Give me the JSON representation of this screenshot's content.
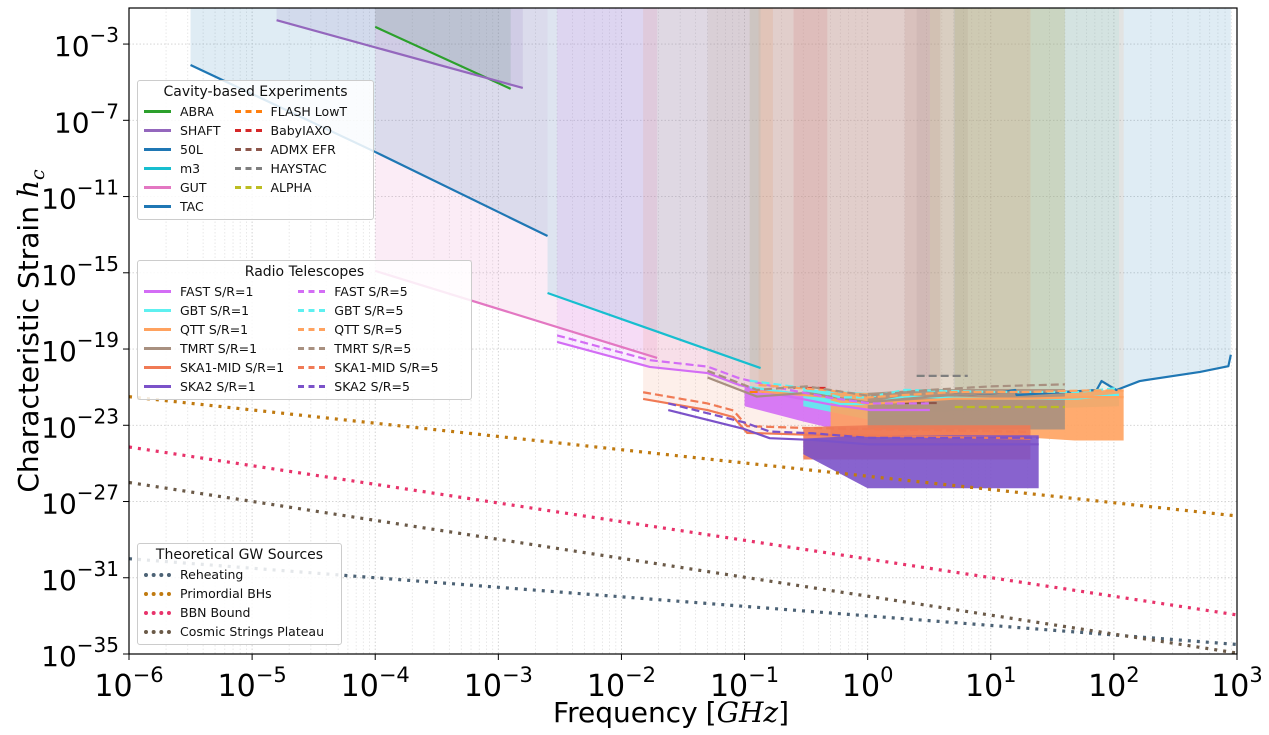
{
  "chart_data": {
    "type": "line",
    "xlabel": "Frequency",
    "xlabel_unit": "GHz",
    "ylabel": "Characteristic Strain",
    "ylabel_symbol": "h",
    "ylabel_subscript": "c",
    "xscale": "log",
    "yscale": "log",
    "xlim": [
      1e-06,
      1000.0
    ],
    "ylim": [
      1e-35,
      0.078
    ],
    "xtick_exponents": [
      -6,
      -5,
      -4,
      -3,
      -2,
      -1,
      0,
      1,
      2,
      3
    ],
    "ytick_exponents": [
      -3,
      -7,
      -11,
      -15,
      -19,
      -23,
      -27,
      -31,
      -35
    ],
    "grid": true,
    "legends": [
      {
        "title": "Cavity-based Experiments",
        "placement": "upper-left",
        "columns": [
          [
            "ABRA",
            "SHAFT",
            "50L",
            "m3",
            "GUT",
            "TAC"
          ],
          [
            "FLASH LowT",
            "BabyIAXO",
            "ADMX EFR",
            "HAYSTAC",
            "ALPHA"
          ]
        ]
      },
      {
        "title": "Radio Telescopes",
        "placement": "center-left",
        "columns": [
          [
            "FAST S/R=1",
            "GBT S/R=1",
            "QTT S/R=1",
            "TMRT S/R=1",
            "SKA1-MID S/R=1",
            "SKA2 S/R=1"
          ],
          [
            "FAST S/R=5",
            "GBT S/R=5",
            "QTT S/R=5",
            "TMRT S/R=5",
            "SKA1-MID S/R=5",
            "SKA2 S/R=5"
          ]
        ]
      },
      {
        "title": "Theoretical GW Sources",
        "placement": "lower-left",
        "columns": [
          [
            "Reheating",
            "Primordial BHs",
            "BBN Bound",
            "Cosmic Strings Plateau"
          ]
        ]
      }
    ],
    "series": [
      {
        "name": "ABRA",
        "group": "cavity",
        "color": "#2ca02c",
        "style": "solid",
        "fill": true,
        "segments": [
          {
            "f": [
              0.0001,
              0.00126
            ],
            "h": [
              0.00794,
              4.47e-06
            ]
          }
        ]
      },
      {
        "name": "SHAFT",
        "group": "cavity",
        "color": "#9467bd",
        "style": "solid",
        "fill": true,
        "segments": [
          {
            "f": [
              1.58e-05,
              0.00158
            ],
            "h": [
              0.0178,
              5.01e-06
            ]
          }
        ]
      },
      {
        "name": "50L",
        "group": "cavity",
        "color": "#1f77b4",
        "style": "solid",
        "fill": true,
        "segments": [
          {
            "f": [
              3.16e-06,
              0.0001
            ],
            "h": [
              7.94e-05,
              2.19e-09
            ]
          },
          {
            "f": [
              5.01,
              11.2,
              15.8,
              16.2,
              72.4,
              79.4,
              105,
              162,
              501,
              851,
              891
            ],
            "h": [
              3.89e-22,
              4.9e-22,
              7.08e-22,
              3.89e-22,
              7.08e-22,
              2.09e-21,
              7.08e-22,
              2.09e-21,
              6.31e-21,
              1.26e-20,
              5.01e-20
            ]
          }
        ]
      },
      {
        "name": "m3",
        "group": "cavity",
        "color": "#17becf",
        "style": "solid",
        "fill": true,
        "segments": [
          {
            "f": [
              0.00251,
              0.135
            ],
            "h": [
              8.71e-17,
              1e-20
            ]
          }
        ]
      },
      {
        "name": "GUT",
        "group": "cavity",
        "color": "#e377c2",
        "style": "solid",
        "fill": true,
        "segments": [
          {
            "f": [
              0.0001,
              0.0195
            ],
            "h": [
              1.26e-15,
              3.39e-20
            ]
          }
        ]
      },
      {
        "name": "TAC",
        "group": "cavity",
        "color": "#1f77b4",
        "style": "solid",
        "fill": true,
        "segments": [
          {
            "f": [
              0.0001,
              0.00251
            ],
            "h": [
              2.19e-09,
              8.51e-14
            ]
          }
        ]
      },
      {
        "name": "FLASH LowT",
        "group": "cavity",
        "color": "#ff7f0e",
        "style": "dashed",
        "fill": true,
        "segments": [
          {
            "f": [
              0.11,
              0.17
            ],
            "h": [
              5.62e-22,
              5.62e-22
            ]
          }
        ]
      },
      {
        "name": "BabyIAXO",
        "group": "cavity",
        "color": "#d62728",
        "style": "dashed",
        "fill": true,
        "segments": [
          {
            "f": [
              0.25,
              0.47
            ],
            "h": [
              9.12e-22,
              9.12e-22
            ]
          }
        ]
      },
      {
        "name": "ADMX EFR",
        "group": "cavity",
        "color": "#8c564b",
        "style": "dashed",
        "fill": true,
        "segments": [
          {
            "f": [
              2.0,
              3.9
            ],
            "h": [
              1.48e-22,
              1.48e-22
            ]
          }
        ]
      },
      {
        "name": "HAYSTAC",
        "group": "cavity",
        "color": "#7f7f7f",
        "style": "dashed",
        "fill": true,
        "segments": [
          {
            "f": [
              2.5,
              6.5
            ],
            "h": [
              3.89e-21,
              3.89e-21
            ]
          }
        ]
      },
      {
        "name": "ALPHA",
        "group": "cavity",
        "color": "#bcbd22",
        "style": "dashed",
        "fill": true,
        "segments": [
          {
            "f": [
              5.1,
              40
            ],
            "h": [
              9.12e-23,
              9.12e-23
            ]
          }
        ]
      },
      {
        "name": "FAST S/R=1",
        "group": "radio",
        "color": "#d36df5",
        "style": "solid",
        "fill": true,
        "segments": [
          {
            "f": [
              0.003,
              0.017,
              0.05,
              0.091,
              0.195,
              0.49,
              1.05,
              3.2
            ],
            "h": [
              2.34e-19,
              1.15e-20,
              5.5e-21,
              1.29e-21,
              3.98e-22,
              1.26e-22,
              6.31e-23,
              6.31e-23
            ]
          }
        ],
        "noise": {
          "f": [
            0.1,
            0.3,
            1,
            3.2
          ],
          "lo": [
            1e-22,
            1.58e-23,
            2.51e-24,
            2.51e-24
          ],
          "hi": [
            1e-21,
            5.01e-22,
            1.58e-22,
            1.58e-22
          ]
        }
      },
      {
        "name": "GBT S/R=1",
        "group": "radio",
        "color": "#5ef0f0",
        "style": "solid",
        "fill": true,
        "segments": [
          {
            "f": [
              0.11,
              0.3,
              0.6,
              1.0,
              2.0,
              10,
              50,
              110
            ],
            "h": [
              1e-21,
              4e-22,
              1.3e-22,
              1.3e-22,
              3.2e-22,
              2.5e-22,
              2.5e-22,
              4e-22
            ]
          }
        ],
        "noise": {
          "f": [
            0.3,
            1,
            3,
            110
          ],
          "lo": [
            1e-22,
            2e-23,
            5e-23,
            1e-22
          ],
          "hi": [
            8e-22,
            5e-22,
            6e-22,
            6e-22
          ]
        }
      },
      {
        "name": "QTT S/R=1",
        "group": "radio",
        "color": "#ffa25f",
        "style": "solid",
        "fill": true,
        "segments": [
          {
            "f": [
              0.13,
              0.5,
              1,
              5,
              20,
              60,
              120
            ],
            "h": [
              6e-22,
              3e-22,
              1.3e-22,
              2.5e-22,
              2.5e-22,
              3e-22,
              3e-22
            ]
          }
        ],
        "noise": {
          "f": [
            0.5,
            10,
            48,
            120
          ],
          "lo": [
            3e-24,
            3e-24,
            1.6e-24,
            1.6e-24
          ],
          "hi": [
            5e-22,
            5e-22,
            7e-22,
            7e-22
          ]
        }
      },
      {
        "name": "TMRT S/R=1",
        "group": "radio",
        "color": "#a89080",
        "style": "solid",
        "fill": true,
        "segments": [
          {
            "f": [
              0.05,
              0.126,
              0.32,
              1,
              3.2,
              10,
              40
            ],
            "h": [
              3.2e-21,
              3.2e-22,
              5e-22,
              1.6e-22,
              3.2e-22,
              5e-22,
              6.3e-22
            ]
          }
        ],
        "noise": {
          "f": [
            1,
            3.2,
            10,
            40
          ],
          "lo": [
            6e-24,
            6e-24,
            6e-24,
            6e-24
          ],
          "hi": [
            5e-22,
            8e-22,
            8e-22,
            8e-22
          ]
        }
      },
      {
        "name": "SKA1-MID S/R=1",
        "group": "radio",
        "color": "#f07a55",
        "style": "solid",
        "fill": true,
        "segments": [
          {
            "f": [
              0.015,
              0.05,
              0.081,
              0.105,
              0.32,
              3.2,
              21
            ],
            "h": [
              2.4e-22,
              6.3e-23,
              2.7e-23,
              4e-24,
              3.2e-24,
              2.5e-24,
              2e-24
            ]
          }
        ],
        "noise": {
          "f": [
            0.3,
            1,
            5,
            21
          ],
          "lo": [
            1.6e-25,
            1.6e-25,
            1.6e-25,
            1.6e-25
          ],
          "hi": [
            8e-24,
            1e-23,
            1e-23,
            1e-23
          ]
        }
      },
      {
        "name": "SKA2 S/R=1",
        "group": "radio",
        "color": "#7b52c9",
        "style": "solid",
        "fill": false,
        "segments": [
          {
            "f": [
              0.024,
              0.1,
              0.16,
              0.36,
              1,
              24.5
            ],
            "h": [
              6.3e-23,
              6.3e-24,
              2.1e-24,
              1.7e-24,
              1e-24,
              1e-24
            ]
          }
        ],
        "noise": {
          "f": [
            0.3,
            1,
            5,
            24.5
          ],
          "lo": [
            3e-25,
            5e-27,
            5e-27,
            5e-27
          ],
          "hi": [
            2e-24,
            3e-24,
            3e-24,
            3e-24
          ]
        }
      },
      {
        "name": "FAST S/R=5",
        "group": "radio",
        "color": "#d36df5",
        "style": "dashed",
        "fill": false,
        "segments": [
          {
            "f": [
              0.003,
              0.017,
              0.05,
              0.091,
              0.195,
              0.49,
              1.05,
              3.2
            ],
            "h": [
              5.2e-19,
              2.6e-20,
              1.2e-20,
              2.9e-21,
              8.9e-22,
              2.8e-22,
              1.4e-22,
              1.4e-22
            ]
          }
        ]
      },
      {
        "name": "GBT S/R=5",
        "group": "radio",
        "color": "#5ef0f0",
        "style": "dashed",
        "fill": false,
        "segments": [
          {
            "f": [
              0.11,
              0.3,
              0.6,
              1.0,
              2.0,
              10,
              50,
              110
            ],
            "h": [
              2.2e-21,
              9e-22,
              2.9e-22,
              2.9e-22,
              7.2e-22,
              5.6e-22,
              5.6e-22,
              9e-22
            ]
          }
        ]
      },
      {
        "name": "QTT S/R=5",
        "group": "radio",
        "color": "#ffa25f",
        "style": "dashed",
        "fill": false,
        "segments": [
          {
            "f": [
              0.13,
              0.5,
              1,
              5,
              20,
              60,
              120
            ],
            "h": [
              1.3e-21,
              6.7e-22,
              2.9e-22,
              5.6e-22,
              5.6e-22,
              6.7e-22,
              6.7e-22
            ]
          }
        ]
      },
      {
        "name": "TMRT S/R=5",
        "group": "radio",
        "color": "#a89080",
        "style": "dashed",
        "fill": false,
        "segments": [
          {
            "f": [
              0.05,
              0.126,
              0.32,
              1,
              3.2,
              10,
              40
            ],
            "h": [
              7.2e-21,
              7.2e-22,
              1.1e-21,
              3.6e-22,
              7.2e-22,
              1.1e-21,
              1.4e-21
            ]
          }
        ]
      },
      {
        "name": "SKA1-MID S/R=5",
        "group": "radio",
        "color": "#f07a55",
        "style": "dashed",
        "fill": false,
        "segments": [
          {
            "f": [
              0.015,
              0.05,
              0.081,
              0.105,
              0.32,
              3.2,
              21
            ],
            "h": [
              5.4e-22,
              1.4e-22,
              6e-23,
              9e-24,
              7.2e-24,
              5.6e-24,
              4.5e-24
            ]
          }
        ]
      },
      {
        "name": "SKA2 S/R=5",
        "group": "radio",
        "color": "#7b52c9",
        "style": "dashed",
        "fill": false,
        "segments": [
          {
            "f": [
              0.024,
              0.1,
              0.16,
              0.36,
              1,
              24.5
            ],
            "h": [
              1.4e-22,
              1.4e-23,
              4.7e-24,
              3.8e-24,
              2.2e-24,
              2.2e-24
            ]
          }
        ]
      },
      {
        "name": "Reheating",
        "group": "theory",
        "color": "#4c6275",
        "style": "dotted",
        "fill": false,
        "segments": [
          {
            "f": [
              1e-06,
              1000.0
            ],
            "h": [
              1e-30,
              3.16e-35
            ]
          }
        ]
      },
      {
        "name": "Primordial BHs",
        "group": "theory",
        "color": "#c07a10",
        "style": "dotted",
        "fill": false,
        "segments": [
          {
            "f": [
              1e-06,
              1000.0
            ],
            "h": [
              3.16e-22,
              1.74e-28
            ]
          }
        ]
      },
      {
        "name": "BBN Bound",
        "group": "theory",
        "color": "#e8336b",
        "style": "dotted",
        "fill": false,
        "segments": [
          {
            "f": [
              1e-06,
              1000.0
            ],
            "h": [
              7.24e-25,
              1.12e-33
            ]
          }
        ]
      },
      {
        "name": "Cosmic Strings Plateau",
        "group": "theory",
        "color": "#6b5a48",
        "style": "dotted",
        "fill": false,
        "segments": [
          {
            "f": [
              1e-06,
              1000.0
            ],
            "h": [
              1e-26,
              1.12e-35
            ]
          }
        ]
      }
    ]
  }
}
